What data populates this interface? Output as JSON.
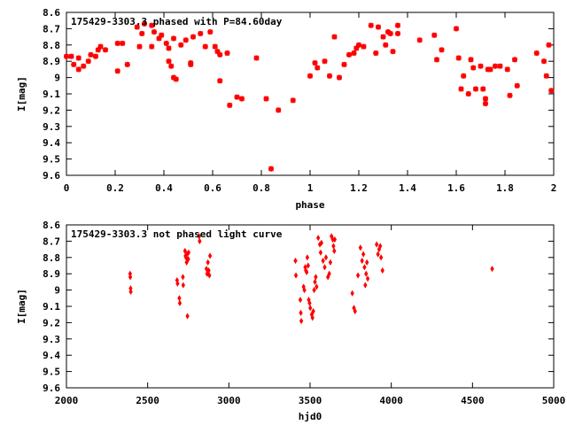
{
  "chart_data": [
    {
      "type": "scatter",
      "title": "175429-3303.3 phased with P=84.60day",
      "xlabel": "phase",
      "ylabel": "I[mag]",
      "xlim": [
        0,
        2
      ],
      "ylim": [
        8.6,
        9.6
      ],
      "y_inverted": true,
      "x_ticks": [
        "0",
        "0.2",
        "0.4",
        "0.6",
        "0.8",
        "1",
        "1.2",
        "1.4",
        "1.6",
        "1.8",
        "2"
      ],
      "y_ticks": [
        "8.6",
        "8.7",
        "8.8",
        "8.9",
        "9",
        "9.1",
        "9.2",
        "9.3",
        "9.4",
        "9.5",
        "9.6"
      ],
      "color": "#ff0000",
      "x": [
        0.0,
        0.02,
        0.03,
        0.05,
        0.05,
        0.07,
        0.09,
        0.1,
        0.12,
        0.13,
        0.14,
        0.16,
        0.21,
        0.21,
        0.23,
        0.25,
        0.29,
        0.3,
        0.31,
        0.32,
        0.35,
        0.35,
        0.36,
        0.38,
        0.39,
        0.41,
        0.42,
        0.42,
        0.43,
        0.44,
        0.44,
        0.45,
        0.47,
        0.49,
        0.51,
        0.51,
        0.52,
        0.55,
        0.57,
        0.59,
        0.61,
        0.62,
        0.63,
        0.63,
        0.66,
        0.67,
        0.7,
        0.72,
        0.78,
        0.82,
        0.84,
        0.87,
        0.93,
        1.0,
        1.02,
        1.03,
        1.06,
        1.08,
        1.1,
        1.12,
        1.14,
        1.16,
        1.18,
        1.19,
        1.2,
        1.22,
        1.25,
        1.27,
        1.28,
        1.3,
        1.31,
        1.32,
        1.33,
        1.34,
        1.36,
        1.36,
        1.45,
        1.51,
        1.52,
        1.54,
        1.6,
        1.61,
        1.62,
        1.63,
        1.65,
        1.66,
        1.67,
        1.68,
        1.7,
        1.71,
        1.72,
        1.72,
        1.73,
        1.74,
        1.76,
        1.78,
        1.81,
        1.82,
        1.84,
        1.85,
        1.93,
        1.96,
        1.97,
        1.98,
        1.99
      ],
      "y": [
        8.87,
        8.87,
        8.92,
        8.88,
        8.95,
        8.93,
        8.9,
        8.86,
        8.87,
        8.83,
        8.81,
        8.83,
        8.96,
        8.79,
        8.79,
        8.92,
        8.69,
        8.81,
        8.73,
        8.67,
        8.81,
        8.68,
        8.72,
        8.76,
        8.74,
        8.79,
        8.82,
        8.9,
        8.93,
        9.0,
        8.76,
        9.01,
        8.8,
        8.77,
        8.91,
        8.92,
        8.75,
        8.73,
        8.81,
        8.72,
        8.81,
        8.84,
        8.86,
        9.02,
        8.85,
        9.17,
        9.12,
        9.13,
        8.88,
        9.13,
        9.56,
        9.2,
        9.14,
        8.99,
        8.91,
        8.94,
        8.9,
        8.99,
        8.75,
        9.0,
        8.92,
        8.86,
        8.85,
        8.82,
        8.8,
        8.81,
        8.68,
        8.85,
        8.69,
        8.75,
        8.8,
        8.72,
        8.73,
        8.84,
        8.68,
        8.73,
        8.77,
        8.74,
        8.89,
        8.83,
        8.7,
        8.88,
        9.07,
        8.99,
        9.1,
        8.89,
        8.94,
        9.07,
        8.93,
        9.07,
        9.13,
        9.16,
        8.95,
        8.95,
        8.93,
        8.93,
        8.95,
        9.11,
        8.89,
        9.05,
        8.85,
        8.9,
        8.99,
        8.8,
        9.08
      ]
    },
    {
      "type": "scatter",
      "title": "175429-3303.3 not phased light curve",
      "xlabel": "hjd0",
      "ylabel": "I[mag]",
      "xlim": [
        2000,
        5000
      ],
      "ylim": [
        8.6,
        9.6
      ],
      "y_inverted": true,
      "x_ticks": [
        "2000",
        "2500",
        "3000",
        "3500",
        "4000",
        "4500",
        "5000"
      ],
      "y_ticks": [
        "8.6",
        "8.7",
        "8.8",
        "8.9",
        "9",
        "9.1",
        "9.2",
        "9.3",
        "9.4",
        "9.5",
        "9.6"
      ],
      "color": "#ff0000",
      "x": [
        2392,
        2393,
        2395,
        2396,
        2681,
        2684,
        2695,
        2698,
        2717,
        2719,
        2730,
        2733,
        2736,
        2740,
        2742,
        2745,
        2750,
        2752,
        2817,
        2820,
        2862,
        2866,
        2871,
        2876,
        2880,
        2884,
        3410,
        3413,
        3440,
        3443,
        3446,
        3460,
        3465,
        3470,
        3474,
        3479,
        3483,
        3488,
        3492,
        3497,
        3501,
        3510,
        3515,
        3520,
        3525,
        3530,
        3535,
        3540,
        3550,
        3560,
        3565,
        3570,
        3580,
        3590,
        3598,
        3610,
        3618,
        3625,
        3632,
        3640,
        3644,
        3649,
        3652,
        3760,
        3770,
        3777,
        3795,
        3810,
        3820,
        3828,
        3835,
        3840,
        3845,
        3850,
        3855,
        3910,
        3918,
        3925,
        3932,
        3937,
        3946,
        4621
      ],
      "y": [
        8.9,
        8.92,
        8.99,
        9.01,
        8.94,
        8.96,
        9.05,
        9.08,
        8.92,
        8.97,
        8.76,
        8.79,
        8.8,
        8.83,
        8.78,
        9.16,
        8.81,
        8.77,
        8.67,
        8.7,
        8.87,
        8.9,
        8.83,
        8.88,
        8.91,
        8.79,
        8.82,
        8.91,
        9.06,
        9.14,
        9.19,
        8.98,
        9.0,
        8.86,
        8.88,
        8.89,
        8.8,
        8.85,
        9.06,
        9.08,
        9.11,
        9.15,
        9.17,
        9.13,
        9.0,
        8.95,
        8.92,
        8.98,
        8.68,
        8.72,
        8.77,
        8.71,
        8.82,
        8.86,
        8.8,
        8.92,
        8.9,
        8.83,
        8.67,
        8.69,
        8.73,
        8.76,
        8.69,
        9.02,
        9.11,
        9.13,
        8.91,
        8.74,
        8.82,
        8.78,
        8.86,
        8.97,
        8.9,
        8.83,
        8.93,
        8.72,
        8.78,
        8.75,
        8.73,
        8.8,
        8.88,
        8.87
      ]
    }
  ]
}
